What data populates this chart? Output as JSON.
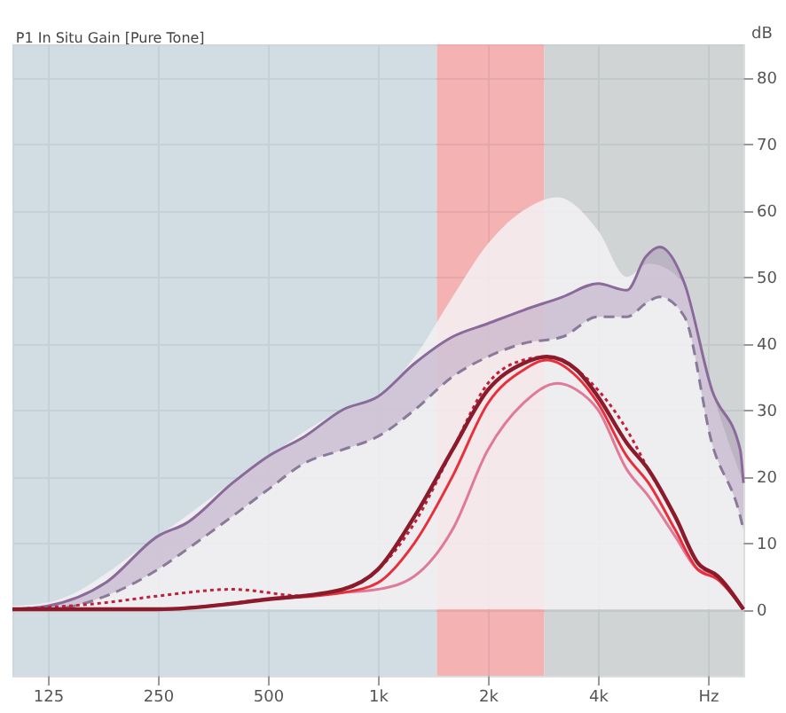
{
  "chart_data": {
    "type": "line",
    "title": "P1 In Situ Gain [Pure Tone]",
    "ylabel": "dB",
    "log": "x",
    "xlim": [
      100,
      10000
    ],
    "xticks": [
      125,
      250,
      500,
      {
        "value": 1000,
        "label": "1k"
      },
      {
        "value": 2000,
        "label": "2k"
      },
      {
        "value": 4000,
        "label": "4k"
      },
      {
        "value": 8000,
        "label": "Hz"
      }
    ],
    "ylim": [
      -10,
      85
    ],
    "yticks": [
      0,
      10,
      20,
      30,
      40,
      50,
      60,
      70,
      80
    ],
    "grid": true,
    "line_style": "solid",
    "marker": "none",
    "bands": [
      {
        "axis": "x",
        "from": 100,
        "to": 1450,
        "color": "#c9d7dd"
      },
      {
        "axis": "x",
        "from": 1450,
        "to": 2850,
        "color": "#f2a4a6"
      },
      {
        "axis": "x",
        "from": 2850,
        "to": 10000,
        "color": "#c8cccd"
      }
    ],
    "series": [
      {
        "type": "area",
        "color": "#f3f1f3",
        "x": [
          100,
          125,
          250,
          500,
          800,
          1000,
          1260,
          1600,
          2000,
          2500,
          3100,
          4000,
          4800,
          5500,
          6900,
          8200,
          10000
        ],
        "values": [
          0.5,
          1,
          11,
          23,
          30,
          32,
          38,
          47,
          55,
          60,
          62,
          57,
          50,
          52,
          49,
          33,
          19
        ]
      },
      {
        "color": "#8a6a9a",
        "x": [
          100,
          125,
          180,
          250,
          300,
          400,
          500,
          630,
          800,
          1000,
          1260,
          1600,
          2000,
          2500,
          3200,
          4000,
          4800,
          5400,
          5900,
          6900,
          8200,
          9800,
          10000
        ],
        "values": [
          0,
          0.5,
          4,
          11,
          13,
          19,
          23,
          26,
          30,
          32,
          37,
          41,
          43,
          45,
          47,
          49,
          48,
          53,
          54.5,
          49,
          33,
          24,
          19
        ],
        "lower": [
          0,
          0,
          2,
          6,
          9,
          14,
          18,
          22,
          24,
          26,
          30,
          35,
          38,
          40,
          41,
          44,
          44,
          46,
          47,
          44,
          25,
          14,
          12
        ],
        "upper": [
          0,
          0.5,
          4,
          11,
          13,
          19,
          23,
          26,
          30,
          32,
          37,
          41,
          43,
          45,
          47,
          49,
          48,
          53,
          54.5,
          49,
          33,
          24,
          19
        ]
      },
      {
        "color": "#8a7a9a",
        "line_style": "dashed",
        "x": [
          100,
          125,
          180,
          250,
          300,
          400,
          500,
          630,
          800,
          1000,
          1260,
          1600,
          2000,
          2500,
          3200,
          4000,
          4800,
          5400,
          5900,
          6900,
          8200,
          9800,
          10000
        ],
        "values": [
          0,
          0,
          2,
          6,
          9,
          14,
          18,
          22,
          24,
          26,
          30,
          35,
          38,
          40,
          41,
          44,
          44,
          46,
          47,
          44,
          25,
          14,
          12
        ]
      },
      {
        "color": "#e07a98",
        "x": [
          100,
          250,
          500,
          800,
          1000,
          1260,
          1600,
          2000,
          2500,
          3100,
          3500,
          4000,
          4800,
          5500,
          6500,
          7500,
          8500,
          10000
        ],
        "values": [
          0,
          0,
          1.5,
          2.5,
          3,
          5,
          12,
          24,
          31,
          34,
          33,
          30,
          21,
          17,
          11,
          6,
          5,
          0
        ]
      },
      {
        "color": "#c0203a",
        "line_style": "dotted",
        "x": [
          100,
          180,
          250,
          400,
          630,
          800,
          1000,
          1260,
          1600,
          2000,
          2500,
          2900,
          3500,
          4000,
          4800,
          5500,
          6500,
          7500,
          8500,
          10000
        ],
        "values": [
          0,
          1,
          2,
          3,
          2,
          3,
          6,
          13,
          24,
          34,
          37.5,
          38,
          36,
          33,
          27,
          21,
          14,
          7,
          5,
          0
        ]
      },
      {
        "color": "#e8303c",
        "x": [
          100,
          250,
          500,
          800,
          1000,
          1260,
          1600,
          2000,
          2500,
          2900,
          3500,
          4000,
          4800,
          5500,
          6500,
          7500,
          8500,
          10000
        ],
        "values": [
          0,
          0,
          1.5,
          2.5,
          4,
          10,
          20,
          31,
          36,
          37.5,
          35,
          31,
          23,
          19,
          12,
          6,
          4.5,
          0
        ]
      },
      {
        "color": "#8b1a2b",
        "x": [
          100,
          250,
          500,
          800,
          1000,
          1260,
          1600,
          2000,
          2500,
          2900,
          3500,
          4000,
          4800,
          5500,
          6500,
          7500,
          8500,
          10000
        ],
        "values": [
          0,
          0,
          1.5,
          3,
          6,
          14,
          24,
          33,
          37,
          38,
          36,
          32,
          25,
          21,
          14,
          7,
          5,
          0
        ]
      }
    ]
  }
}
